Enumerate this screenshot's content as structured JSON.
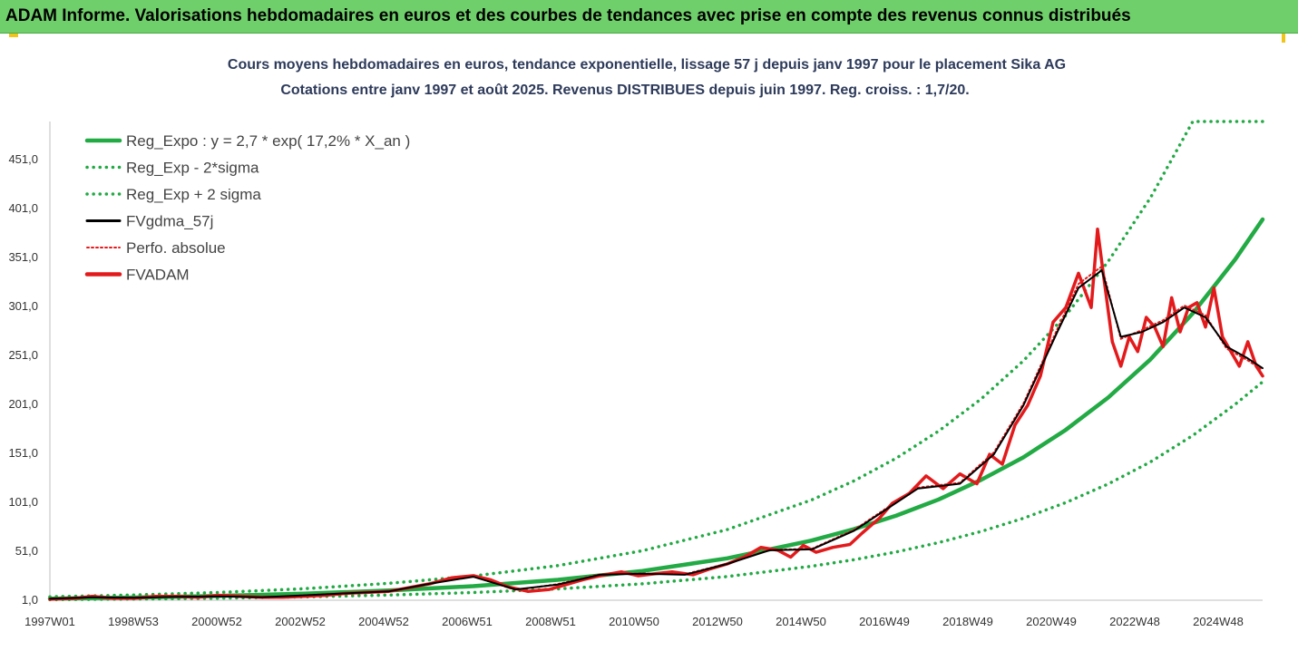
{
  "header": {
    "title": "ADAM Informe. Valorisations hebdomadaires en euros et des courbes de tendances avec prise en compte des revenus connus distribués",
    "bg_color": "#6fcf6a"
  },
  "chart_data": {
    "type": "line",
    "title": "Cours moyens hebdomadaires en euros, tendance exponentielle, lissage 57 j depuis janv 1997 pour le placement Sika AG",
    "subtitle": "Cotations entre janv 1997 et août 2025. Revenus DISTRIBUES depuis juin 1997. Reg. croiss. : 1,7/20.",
    "xlabel": "",
    "ylabel": "",
    "x_ticks": [
      "1997W01",
      "1998W53",
      "2000W52",
      "2002W52",
      "2004W52",
      "2006W51",
      "2008W51",
      "2010W50",
      "2012W50",
      "2014W50",
      "2016W49",
      "2018W49",
      "2020W49",
      "2022W48",
      "2024W48"
    ],
    "x_range": [
      1997.0,
      2025.65
    ],
    "y_ticks": [
      "1,0",
      "51,0",
      "101,0",
      "151,0",
      "201,0",
      "251,0",
      "301,0",
      "351,0",
      "401,0",
      "451,0"
    ],
    "ylim": [
      1,
      490
    ],
    "grid": false,
    "legend_position": "top-left",
    "series": [
      {
        "name": "Reg_Expo : y = 2,7 * exp( 17,2% *  X_an )",
        "color": "#22aa44",
        "style": "solid",
        "x": [
          1997,
          1999,
          2001,
          2003,
          2005,
          2007,
          2009,
          2011,
          2013,
          2015,
          2016,
          2017,
          2018,
          2019,
          2020,
          2021,
          2022,
          2023,
          2024,
          2025,
          2025.65
        ],
        "y": [
          2.7,
          3.8,
          5.4,
          7.7,
          10.9,
          15.4,
          21.8,
          30.9,
          43.8,
          62.0,
          73.7,
          87.5,
          104.0,
          124.0,
          147.0,
          175.0,
          208.0,
          247.0,
          294.0,
          349.0,
          390.0
        ]
      },
      {
        "name": "Reg_Exp - 2*sigma",
        "color": "#22aa44",
        "style": "dotted",
        "x": [
          1997,
          1999,
          2001,
          2003,
          2005,
          2007,
          2009,
          2011,
          2013,
          2015,
          2016,
          2017,
          2018,
          2019,
          2020,
          2021,
          2022,
          2023,
          2024,
          2025,
          2025.65
        ],
        "y": [
          1.6,
          2.2,
          3.1,
          4.4,
          6.3,
          8.9,
          12.6,
          17.8,
          25.2,
          35.7,
          42.4,
          50.4,
          59.9,
          71.3,
          84.7,
          100.7,
          119.7,
          142.2,
          169.3,
          201.0,
          224.0
        ]
      },
      {
        "name": "Reg_Exp + 2 sigma",
        "color": "#22aa44",
        "style": "dotted",
        "x": [
          1997,
          1999,
          2001,
          2003,
          2005,
          2007,
          2009,
          2011,
          2013,
          2015,
          2016,
          2017,
          2018,
          2019,
          2020,
          2021,
          2022,
          2023,
          2024,
          2025,
          2025.65
        ],
        "y": [
          4.5,
          6.4,
          9.0,
          12.8,
          18.2,
          25.7,
          36.4,
          51.6,
          73.1,
          103.5,
          123.0,
          146.2,
          173.9,
          206.6,
          245.6,
          292.0,
          347.0,
          412.0,
          490.0,
          490.0,
          490.0
        ]
      },
      {
        "name": "FVgdma_57j",
        "color": "#000000",
        "style": "solid",
        "x": [
          1997,
          1998,
          1999,
          2000,
          2001,
          2002,
          2003,
          2004,
          2005,
          2006,
          2007,
          2008,
          2009,
          2010,
          2011,
          2012,
          2013,
          2014,
          2015,
          2016,
          2016.8,
          2017.5,
          2018.5,
          2019.3,
          2020,
          2020.8,
          2021.3,
          2021.85,
          2022.3,
          2022.8,
          2023.3,
          2023.8,
          2024.3,
          2024.8,
          2025.3,
          2025.65
        ],
        "y": [
          2.5,
          4.0,
          3.5,
          4.5,
          5.0,
          4.0,
          6.0,
          8.0,
          10.0,
          18.0,
          25.0,
          12.0,
          17.0,
          27.0,
          28.0,
          27.0,
          38.0,
          52.0,
          53.0,
          72.0,
          95.0,
          115.0,
          120.0,
          150.0,
          200.0,
          275.0,
          320.0,
          338.0,
          270.0,
          275.0,
          285.0,
          300.0,
          290.0,
          260.0,
          248.0,
          238.0
        ]
      },
      {
        "name": "Perfo. absolue",
        "color": "#e31a1c",
        "style": "dotted",
        "x": [
          1997,
          1998,
          1999,
          2000,
          2001,
          2002,
          2003,
          2004,
          2005,
          2006,
          2007,
          2008,
          2009,
          2010,
          2011,
          2012,
          2013,
          2014,
          2015,
          2016,
          2016.8,
          2017.5,
          2018.5,
          2019.3,
          2020,
          2020.8,
          2021.3,
          2021.85,
          2022.3,
          2022.8,
          2023.3,
          2023.8,
          2024.3,
          2024.8,
          2025.3,
          2025.65
        ],
        "y": [
          2.5,
          4.2,
          3.4,
          4.6,
          5.1,
          3.9,
          6.1,
          8.2,
          10.2,
          18.5,
          25.5,
          11.5,
          17.5,
          27.5,
          28.5,
          27.5,
          38.5,
          52.5,
          53.5,
          73.0,
          96.0,
          116.0,
          121.0,
          152.0,
          202.0,
          278.0,
          324.0,
          342.0,
          268.0,
          277.0,
          287.0,
          302.0,
          292.0,
          258.0,
          246.0,
          236.0
        ]
      },
      {
        "name": "FVADAM",
        "color": "#e31a1c",
        "style": "solid",
        "x": [
          1997,
          1997.6,
          1998,
          1998.5,
          1999,
          1999.5,
          2000,
          2000.5,
          2001,
          2001.5,
          2002,
          2002.5,
          2003,
          2003.5,
          2004,
          2004.5,
          2005,
          2005.5,
          2006,
          2006.5,
          2007,
          2007.4,
          2007.8,
          2008.3,
          2008.8,
          2009.2,
          2009.6,
          2010,
          2010.5,
          2010.9,
          2011.3,
          2011.7,
          2012.2,
          2012.6,
          2013,
          2013.4,
          2013.8,
          2014.2,
          2014.5,
          2014.8,
          2015.1,
          2015.5,
          2015.9,
          2016.2,
          2016.6,
          2016.9,
          2017.3,
          2017.7,
          2018.1,
          2018.5,
          2018.9,
          2019.2,
          2019.5,
          2019.8,
          2020.1,
          2020.4,
          2020.7,
          2021.0,
          2021.3,
          2021.6,
          2021.75,
          2021.9,
          2022.1,
          2022.3,
          2022.5,
          2022.7,
          2022.9,
          2023.1,
          2023.3,
          2023.5,
          2023.7,
          2023.9,
          2024.1,
          2024.3,
          2024.5,
          2024.7,
          2024.9,
          2025.1,
          2025.3,
          2025.5,
          2025.65
        ],
        "y": [
          2.0,
          3.0,
          5.0,
          3.0,
          3.0,
          5.0,
          5.0,
          4.0,
          6.0,
          5.0,
          4.0,
          4.0,
          5.0,
          6.0,
          8.0,
          9.0,
          10.0,
          14.0,
          18.0,
          24.0,
          26.0,
          22.0,
          15.0,
          10.0,
          12.0,
          17.0,
          22.0,
          26.0,
          30.0,
          26.0,
          28.0,
          30.0,
          27.0,
          33.0,
          38.0,
          45.0,
          55.0,
          52.0,
          45.0,
          57.0,
          50.0,
          55.0,
          58.0,
          70.0,
          85.0,
          100.0,
          110.0,
          128.0,
          115.0,
          130.0,
          120.0,
          150.0,
          140.0,
          180.0,
          200.0,
          230.0,
          285.0,
          300.0,
          335.0,
          300.0,
          380.0,
          330.0,
          265.0,
          240.0,
          270.0,
          255.0,
          290.0,
          280.0,
          260.0,
          310.0,
          275.0,
          300.0,
          305.0,
          280.0,
          320.0,
          270.0,
          255.0,
          240.0,
          265.0,
          240.0,
          230.0
        ]
      }
    ]
  }
}
